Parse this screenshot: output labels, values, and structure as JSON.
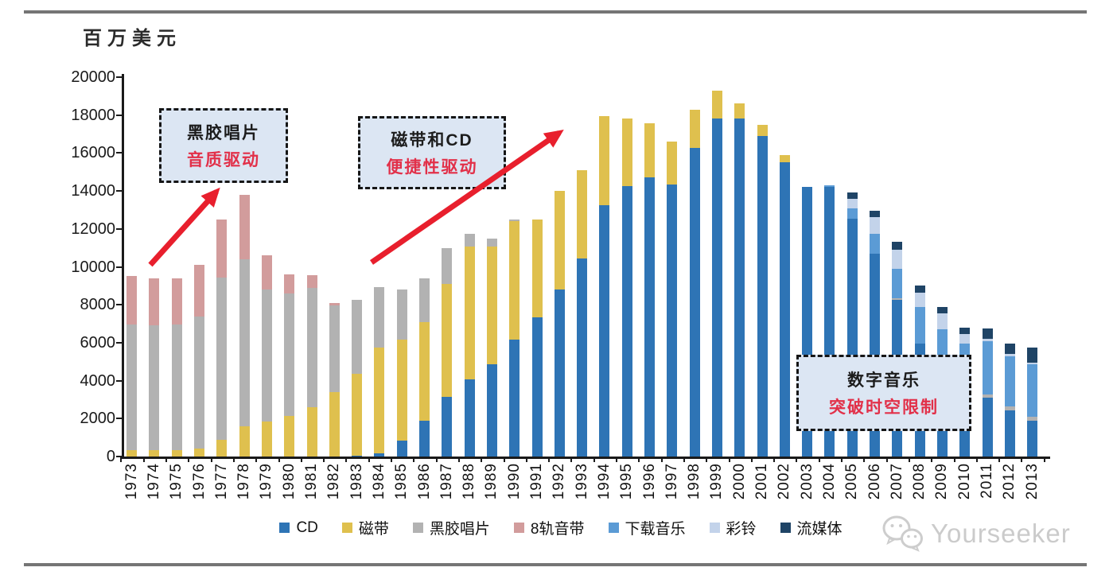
{
  "page": {
    "unit_label": "百万美元",
    "watermark": "Yourseeker"
  },
  "chart_data": {
    "type": "bar",
    "stacked": true,
    "title": "",
    "ylabel": "百万美元",
    "xlabel": "",
    "unit": "百万美元",
    "ylim": [
      0,
      20000
    ],
    "yticks": [
      0,
      2000,
      4000,
      6000,
      8000,
      10000,
      12000,
      14000,
      16000,
      18000,
      20000
    ],
    "grid": false,
    "legend_position": "bottom",
    "categories": [
      "1973",
      "1974",
      "1975",
      "1976",
      "1977",
      "1978",
      "1979",
      "1980",
      "1981",
      "1982",
      "1983",
      "1984",
      "1985",
      "1986",
      "1987",
      "1988",
      "1989",
      "1990",
      "1991",
      "1992",
      "1993",
      "1994",
      "1995",
      "1996",
      "1997",
      "1998",
      "1999",
      "2000",
      "2001",
      "2002",
      "2003",
      "2004",
      "2005",
      "2006",
      "2007",
      "2008",
      "2009",
      "2010",
      "2011",
      "2012",
      "2013"
    ],
    "series": [
      {
        "name": "CD",
        "color": "#2e74b5",
        "values": [
          0,
          0,
          0,
          0,
          0,
          0,
          0,
          0,
          0,
          0,
          50,
          150,
          850,
          1900,
          3150,
          4050,
          4850,
          6150,
          7350,
          8800,
          10450,
          13250,
          14250,
          14700,
          14350,
          16250,
          17800,
          17800,
          16900,
          15500,
          14200,
          14200,
          12550,
          10700,
          8250,
          5950,
          4300,
          3700,
          3100,
          2450,
          1900
        ]
      },
      {
        "name": "磁带",
        "color": "#dfc04e",
        "values": [
          350,
          350,
          350,
          400,
          900,
          1600,
          1850,
          2150,
          2600,
          3400,
          4300,
          5600,
          5300,
          5200,
          5950,
          7000,
          6200,
          6250,
          5150,
          5200,
          4650,
          4700,
          3550,
          2850,
          2250,
          2050,
          1500,
          800,
          600,
          400,
          0,
          0,
          0,
          0,
          0,
          0,
          0,
          0,
          0,
          0,
          0
        ]
      },
      {
        "name": "黑胶唱片",
        "color": "#b2b2b2",
        "values": [
          6600,
          6550,
          6600,
          7000,
          8550,
          8800,
          6950,
          6450,
          6300,
          4550,
          3900,
          3200,
          2650,
          2300,
          1900,
          700,
          450,
          100,
          0,
          0,
          0,
          0,
          0,
          0,
          0,
          0,
          0,
          0,
          0,
          0,
          0,
          0,
          0,
          0,
          100,
          0,
          0,
          0,
          150,
          200,
          200
        ]
      },
      {
        "name": "8轨音带",
        "color": "#d29c9c",
        "values": [
          2550,
          2500,
          2450,
          2700,
          3050,
          3400,
          1800,
          1000,
          650,
          150,
          0,
          0,
          0,
          0,
          0,
          0,
          0,
          0,
          0,
          0,
          0,
          0,
          0,
          0,
          0,
          0,
          0,
          0,
          0,
          0,
          0,
          0,
          0,
          0,
          0,
          0,
          0,
          0,
          0,
          0,
          0
        ]
      },
      {
        "name": "下载音乐",
        "color": "#5b9bd5",
        "values": [
          0,
          0,
          0,
          0,
          0,
          0,
          0,
          0,
          0,
          0,
          0,
          0,
          0,
          0,
          0,
          0,
          0,
          0,
          0,
          0,
          0,
          0,
          0,
          0,
          0,
          0,
          0,
          0,
          0,
          0,
          0,
          100,
          550,
          1050,
          1550,
          1950,
          2400,
          2250,
          2850,
          2650,
          2750
        ]
      },
      {
        "name": "彩铃",
        "color": "#c3d3ea",
        "values": [
          0,
          0,
          0,
          0,
          0,
          0,
          0,
          0,
          0,
          0,
          0,
          0,
          0,
          0,
          0,
          0,
          0,
          0,
          0,
          0,
          0,
          0,
          0,
          0,
          0,
          0,
          0,
          0,
          0,
          0,
          0,
          0,
          500,
          850,
          1000,
          750,
          850,
          500,
          100,
          100,
          100
        ]
      },
      {
        "name": "流媒体",
        "color": "#1f4466",
        "values": [
          0,
          0,
          0,
          0,
          0,
          0,
          0,
          0,
          0,
          0,
          0,
          0,
          0,
          0,
          0,
          0,
          0,
          0,
          0,
          0,
          0,
          0,
          0,
          0,
          0,
          0,
          0,
          0,
          0,
          0,
          0,
          0,
          300,
          350,
          400,
          350,
          350,
          350,
          550,
          550,
          800
        ]
      }
    ],
    "annotations": [
      {
        "line1": "黑胶唱片",
        "line2": "音质驱动"
      },
      {
        "line1": "磁带和CD",
        "line2": "便捷性驱动"
      },
      {
        "line1": "数字音乐",
        "line2": "突破时空限制"
      }
    ]
  }
}
